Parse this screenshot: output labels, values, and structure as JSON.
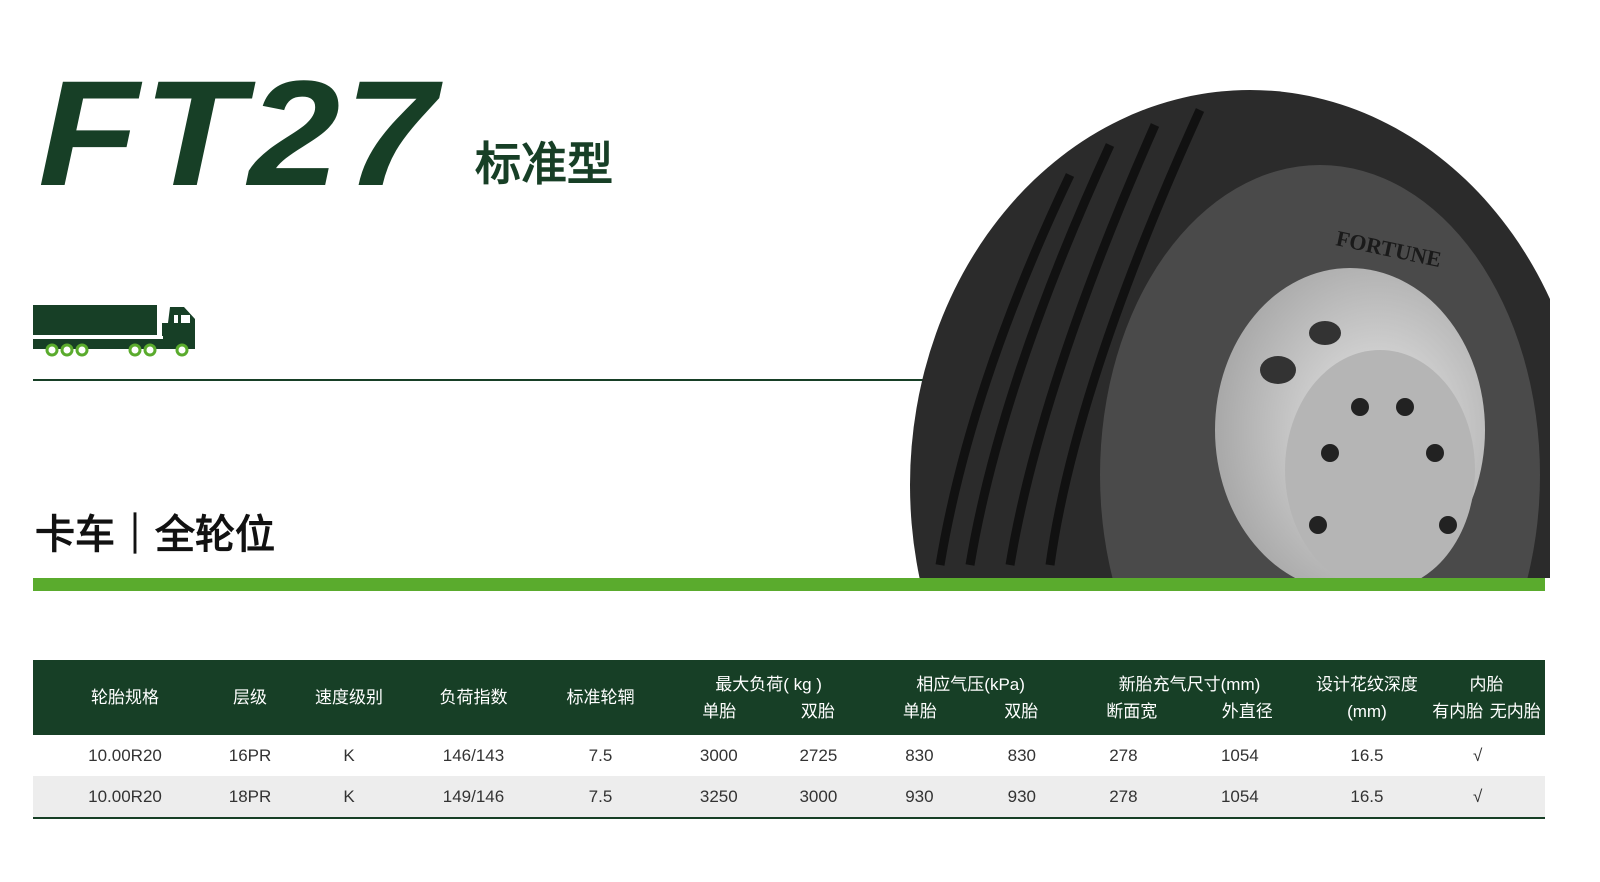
{
  "header": {
    "model": "FT27",
    "subtitle": "标准型",
    "category": "卡车｜全轮位",
    "tire_brand": "FORTUNE"
  },
  "colors": {
    "dark_green": "#173f26",
    "light_green": "#5aab2d",
    "row_alt": "#ededed"
  },
  "icons": {
    "vehicle": "truck-trailer-icon"
  },
  "table": {
    "headers": {
      "size": "轮胎规格",
      "ply": "层级",
      "speed": "速度级别",
      "load_index": "负荷指数",
      "rim": "标准轮辋",
      "max_load": "最大负荷( kg )",
      "max_load_single": "单胎",
      "max_load_dual": "双胎",
      "pressure": "相应气压(kPa)",
      "pressure_single": "单胎",
      "pressure_dual": "双胎",
      "dimensions": "新胎充气尺寸(mm)",
      "section_width": "断面宽",
      "overall_diameter": "外直径",
      "tread_depth": "设计花纹深度",
      "tread_depth_unit": "(mm)",
      "tube": "内胎",
      "tube_type": "有内胎",
      "tubeless": "无内胎"
    },
    "rows": [
      [
        "10.00R20",
        "16PR",
        "K",
        "146/143",
        "7.5",
        "3000",
        "2725",
        "830",
        "830",
        "278",
        "1054",
        "16.5",
        "√",
        ""
      ],
      [
        "10.00R20",
        "18PR",
        "K",
        "149/146",
        "7.5",
        "3250",
        "3000",
        "930",
        "930",
        "278",
        "1054",
        "16.5",
        "√",
        ""
      ]
    ]
  }
}
